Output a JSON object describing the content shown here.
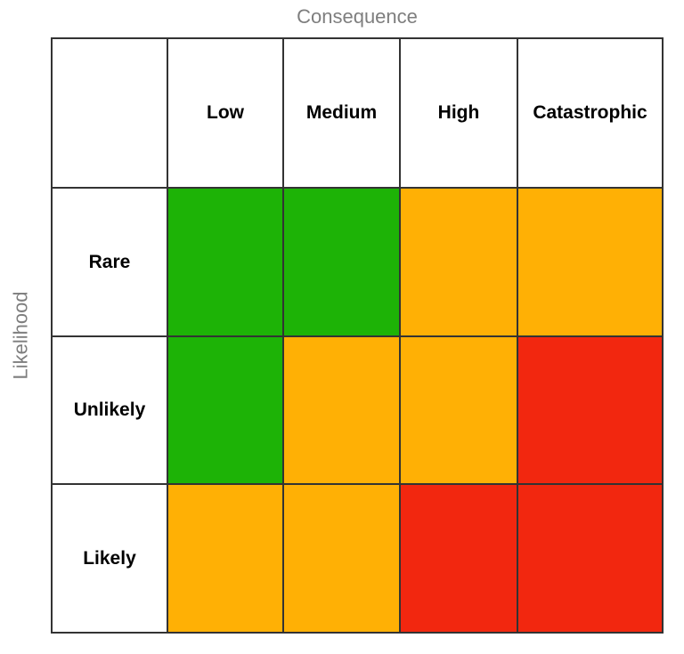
{
  "matrix": {
    "x_axis_title": "Consequence",
    "y_axis_title": "Likelihood",
    "columns": [
      "Low",
      "Medium",
      "High",
      "Catastrophic"
    ],
    "rows": [
      "Rare",
      "Unlikely",
      "Likely"
    ],
    "cells": [
      [
        "green",
        "green",
        "orange",
        "orange"
      ],
      [
        "green",
        "orange",
        "orange",
        "red"
      ],
      [
        "orange",
        "orange",
        "red",
        "red"
      ]
    ],
    "colors": {
      "green": "#1db306",
      "orange": "#ffb005",
      "red": "#f2270f",
      "border": "#333333",
      "axis_text": "#7e7e7e",
      "label_text": "#000000"
    }
  },
  "chart_data": {
    "type": "heatmap",
    "title": "",
    "xlabel": "Consequence",
    "ylabel": "Likelihood",
    "x_categories": [
      "Low",
      "Medium",
      "High",
      "Catastrophic"
    ],
    "y_categories": [
      "Rare",
      "Unlikely",
      "Likely"
    ],
    "values": [
      [
        "green",
        "green",
        "orange",
        "orange"
      ],
      [
        "green",
        "orange",
        "orange",
        "red"
      ],
      [
        "orange",
        "orange",
        "red",
        "red"
      ]
    ],
    "palette": {
      "green": "#1db306",
      "orange": "#ffb005",
      "red": "#f2270f"
    },
    "grid": true,
    "legend": false
  }
}
